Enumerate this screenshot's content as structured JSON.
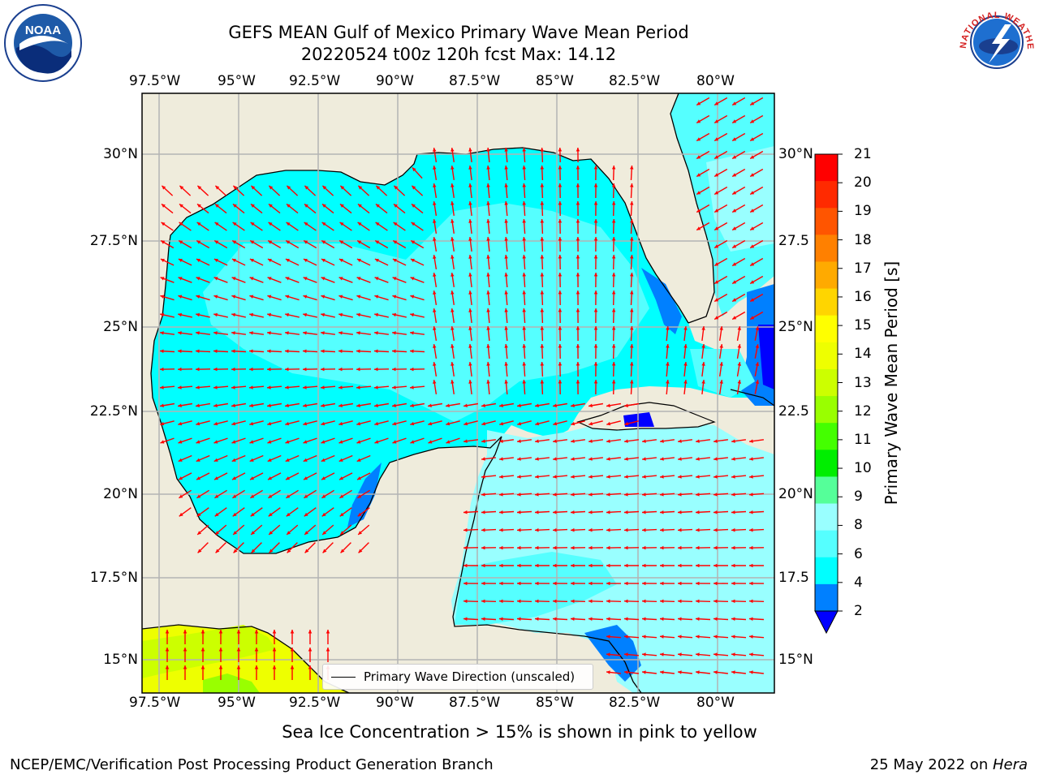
{
  "title": {
    "line1": "GEFS MEAN Gulf of Mexico Primary Wave Mean Period",
    "line2": "20220524 t00z 120h fcst   Max: 14.12"
  },
  "map": {
    "lon_ticks": [
      "97.5°W",
      "95°W",
      "92.5°W",
      "90°W",
      "87.5°W",
      "85°W",
      "82.5°W",
      "80°W"
    ],
    "lat_ticks_left": [
      "30°N",
      "27.5°N",
      "25°N",
      "22.5°N",
      "20°N",
      "17.5°N",
      "15°N"
    ],
    "lat_ticks_right": [
      "30°N",
      "27.5",
      "25°N",
      "22.5",
      "20°N",
      "17.5",
      "15°N"
    ],
    "legend_label": "Primary Wave Direction (unscaled)",
    "land_color": "#efecdc",
    "arrow_color": "#ff0000"
  },
  "colorbar": {
    "label": "Primary Wave Mean Period [s]",
    "ticks": [
      "21",
      "20",
      "19",
      "18",
      "17",
      "16",
      "15",
      "14",
      "13",
      "12",
      "11",
      "10",
      "9",
      "8",
      "6",
      "4",
      "2"
    ],
    "colors": [
      "#ff0000",
      "#ff2a00",
      "#ff5500",
      "#ff8000",
      "#ffaa00",
      "#ffd500",
      "#ffff00",
      "#eeff00",
      "#ccff00",
      "#99ff00",
      "#44ff00",
      "#00ee00",
      "#55ff99",
      "#99ffff",
      "#55ffff",
      "#00ffff",
      "#0080ff"
    ],
    "under_color": "#0000ff"
  },
  "subtitle": "Sea Ice Concentration > 15% is shown in pink to yellow",
  "footer": {
    "left": "NCEP/EMC/Verification Post Processing Product Generation Branch",
    "right_prefix": "25 May 2022 on ",
    "right_host": "Hera"
  },
  "logos": {
    "noaa_text": "NOAA",
    "nws_text": "NATIONAL WEATHER SERVICE"
  }
}
